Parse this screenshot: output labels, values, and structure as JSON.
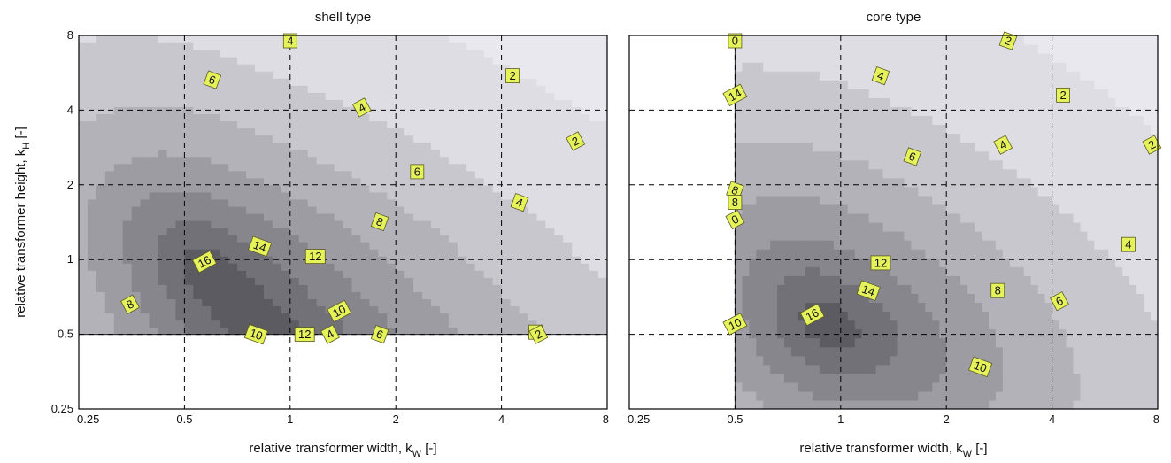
{
  "chart_data": [
    {
      "type": "contour",
      "title": "shell type",
      "xlabel": "relative transformer width, k",
      "xlabel_sub": "W",
      "xlabel_unit": "[-]",
      "ylabel": "relative transformer height, k",
      "ylabel_sub": "H",
      "ylabel_unit": "[-]",
      "xscale": "log2",
      "yscale": "log2",
      "xlim": [
        0.25,
        8
      ],
      "ylim": [
        0.25,
        8
      ],
      "xticks": [
        "0.25",
        "0.5",
        "1",
        "2",
        "4",
        "8"
      ],
      "yticks": [
        "0.25",
        "0.5",
        "1",
        "2",
        "4",
        "8"
      ],
      "grid": true,
      "valid_region": "k_H >= 0.5",
      "peak": {
        "kw": 0.57,
        "kh": 0.92,
        "value": 16
      },
      "levels": [
        2,
        4,
        6,
        8,
        10,
        12,
        14,
        16
      ],
      "contour_labels": [
        {
          "text": "16",
          "kw": 0.57,
          "kh": 0.98
        },
        {
          "text": "14",
          "kw": 0.82,
          "kh": 1.13
        },
        {
          "text": "12",
          "kw": 1.18,
          "kh": 1.03
        },
        {
          "text": "10",
          "kw": 1.38,
          "kh": 0.62
        },
        {
          "text": "8",
          "kw": 1.8,
          "kh": 1.42
        },
        {
          "text": "6",
          "kw": 2.3,
          "kh": 2.26
        },
        {
          "text": "4",
          "kw": 1.6,
          "kh": 4.1
        },
        {
          "text": "4",
          "kw": 4.5,
          "kh": 1.7
        },
        {
          "text": "2",
          "kw": 4.3,
          "kh": 5.5
        },
        {
          "text": "2",
          "kw": 6.5,
          "kh": 3.0
        },
        {
          "text": "6",
          "kw": 0.6,
          "kh": 5.3
        },
        {
          "text": "4",
          "kw": 1.0,
          "kh": 7.8
        },
        {
          "text": "8",
          "kw": 0.35,
          "kh": 0.66
        },
        {
          "text": "10",
          "kw": 0.8,
          "kh": 0.5
        },
        {
          "text": "12",
          "kw": 1.1,
          "kh": 0.5
        },
        {
          "text": "4",
          "kw": 1.3,
          "kh": 0.5
        },
        {
          "text": "6",
          "kw": 1.8,
          "kh": 0.5
        },
        {
          "text": "4",
          "kw": 5.0,
          "kh": 0.51
        },
        {
          "text": "2",
          "kw": 5.1,
          "kh": 0.5
        }
      ]
    },
    {
      "type": "contour",
      "title": "core type",
      "xlabel": "relative transformer width, k",
      "xlabel_sub": "W",
      "xlabel_unit": "[-]",
      "xscale": "log2",
      "yscale": "log2",
      "xlim": [
        0.25,
        8
      ],
      "ylim": [
        0.25,
        8
      ],
      "xticks": [
        "0.25",
        "0.5",
        "1",
        "2",
        "4",
        "8"
      ],
      "grid": true,
      "valid_region": "k_W >= 0.5",
      "peak": {
        "kw": 0.9,
        "kh": 0.55,
        "value": 16
      },
      "levels": [
        2,
        4,
        6,
        8,
        10,
        12,
        14,
        16
      ],
      "contour_labels": [
        {
          "text": "16",
          "kw": 0.83,
          "kh": 0.6
        },
        {
          "text": "14",
          "kw": 1.2,
          "kh": 0.75
        },
        {
          "text": "12",
          "kw": 1.3,
          "kh": 0.97
        },
        {
          "text": "10",
          "kw": 0.5,
          "kh": 0.55
        },
        {
          "text": "10",
          "kw": 2.5,
          "kh": 0.37
        },
        {
          "text": "8",
          "kw": 2.8,
          "kh": 0.75
        },
        {
          "text": "6",
          "kw": 4.2,
          "kh": 0.68
        },
        {
          "text": "6",
          "kw": 1.6,
          "kh": 2.6
        },
        {
          "text": "4",
          "kw": 6.6,
          "kh": 1.15
        },
        {
          "text": "4",
          "kw": 2.9,
          "kh": 2.9
        },
        {
          "text": "4",
          "kw": 1.3,
          "kh": 5.5
        },
        {
          "text": "2",
          "kw": 4.3,
          "kh": 4.6
        },
        {
          "text": "2",
          "kw": 7.7,
          "kh": 2.9
        },
        {
          "text": "2",
          "kw": 3.0,
          "kh": 7.8
        },
        {
          "text": "0",
          "kw": 0.5,
          "kh": 8.0
        },
        {
          "text": "14",
          "kw": 0.5,
          "kh": 4.6
        },
        {
          "text": "8",
          "kw": 0.5,
          "kh": 1.9
        },
        {
          "text": "8",
          "kw": 0.5,
          "kh": 1.7
        },
        {
          "text": "0",
          "kw": 0.5,
          "kh": 1.45
        }
      ]
    }
  ]
}
